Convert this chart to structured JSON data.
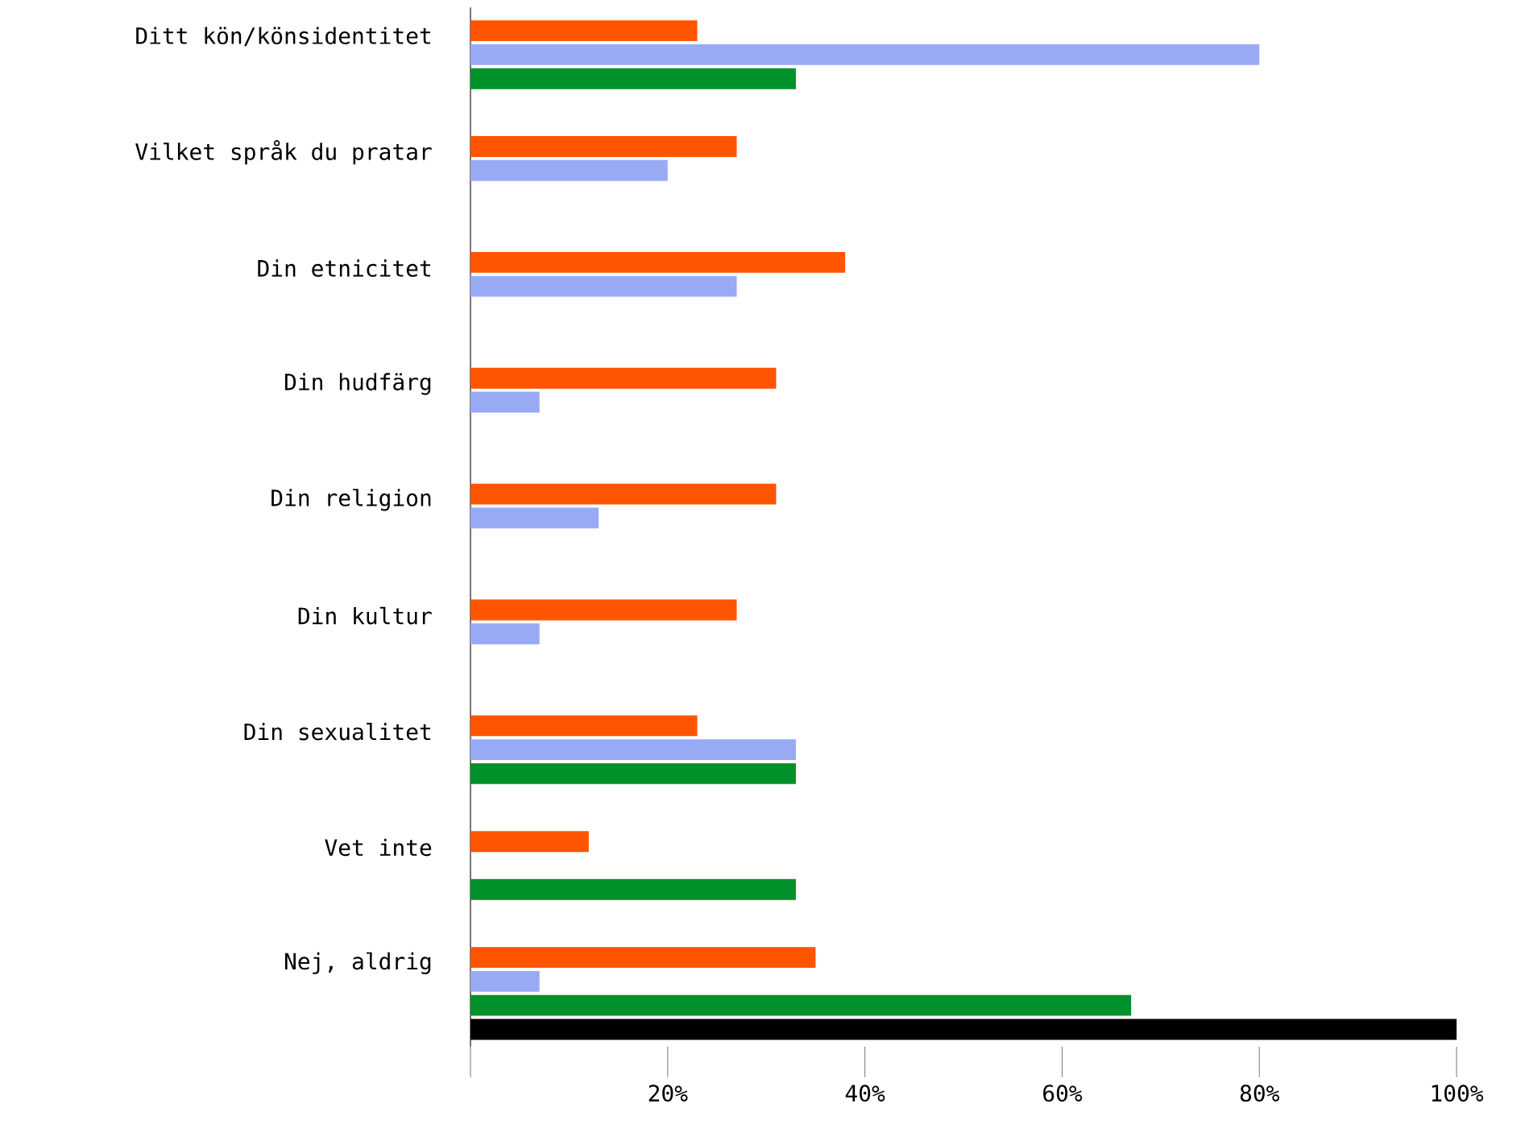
{
  "chart_data": {
    "type": "bar",
    "orientation": "horizontal",
    "categories": [
      "Ditt kön/könsidentitet",
      "Vilket språk du pratar",
      "Din etnicitet",
      "Din hudfärg",
      "Din religion",
      "Din kultur",
      "Din sexualitet",
      "Vet inte",
      "Nej, aldrig"
    ],
    "series": [
      {
        "color": "#ff5500",
        "values": [
          23,
          27,
          38,
          31,
          31,
          27,
          23,
          12,
          35
        ]
      },
      {
        "color": "#99aaf5",
        "values": [
          80,
          20,
          27,
          7,
          13,
          7,
          33,
          null,
          7
        ]
      },
      {
        "color": "#00912a",
        "values": [
          33,
          null,
          null,
          null,
          null,
          null,
          33,
          33,
          67
        ]
      },
      {
        "color": "#000000",
        "values": [
          null,
          null,
          null,
          null,
          null,
          null,
          null,
          null,
          100
        ]
      }
    ],
    "xlim": [
      0,
      100
    ],
    "xticks": [
      {
        "value": 0,
        "label": null
      },
      {
        "value": 20,
        "label": "20%"
      },
      {
        "value": 40,
        "label": "40%"
      },
      {
        "value": 60,
        "label": "60%"
      },
      {
        "value": 80,
        "label": "80%"
      },
      {
        "value": 100,
        "label": "100%"
      }
    ]
  }
}
